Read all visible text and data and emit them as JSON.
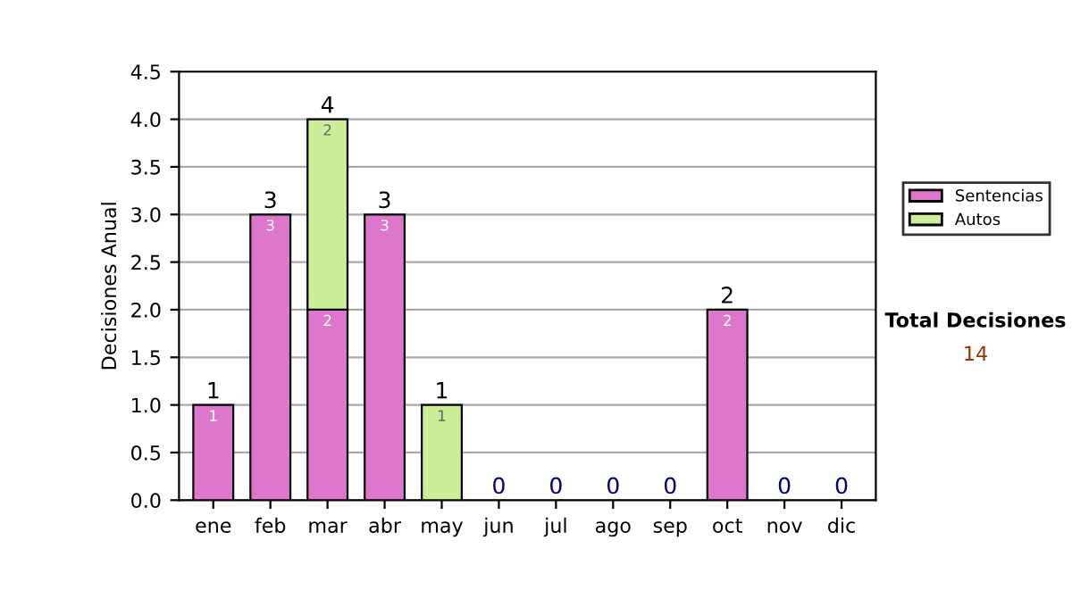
{
  "chart_data": {
    "type": "bar",
    "stacked": true,
    "ylabel": "Decisiones Anual",
    "categories": [
      "ene",
      "feb",
      "mar",
      "abr",
      "may",
      "jun",
      "jul",
      "ago",
      "sep",
      "oct",
      "nov",
      "dic"
    ],
    "series": [
      {
        "name": "Sentencias",
        "color": "#dd77cc",
        "values": [
          1,
          3,
          2,
          3,
          0,
          0,
          0,
          0,
          0,
          2,
          0,
          0
        ],
        "value_labels": [
          "1",
          "3",
          "2",
          "3",
          null,
          null,
          null,
          null,
          null,
          "2",
          null,
          null
        ]
      },
      {
        "name": "Autos",
        "color": "#ccee99",
        "values": [
          0,
          0,
          2,
          0,
          1,
          0,
          0,
          0,
          0,
          0,
          0,
          0
        ],
        "value_labels": [
          null,
          null,
          "2",
          null,
          "1",
          null,
          null,
          null,
          null,
          null,
          null,
          null
        ]
      }
    ],
    "totals": [
      "1",
      "3",
      "4",
      "3",
      "1",
      "0",
      "0",
      "0",
      "0",
      "2",
      "0",
      "0"
    ],
    "ylim": [
      0,
      4.5
    ],
    "yticks": [
      {
        "value": 0,
        "label": "0.0"
      },
      {
        "value": 0.5,
        "label": "0.5"
      },
      {
        "value": 1,
        "label": "1.0"
      },
      {
        "value": 1.5,
        "label": "1.5"
      },
      {
        "value": 2,
        "label": "2.0"
      },
      {
        "value": 2.5,
        "label": "2.5"
      },
      {
        "value": 3,
        "label": "3.0"
      },
      {
        "value": 3.5,
        "label": "3.5"
      },
      {
        "value": 4,
        "label": "4.0"
      },
      {
        "value": 4.5,
        "label": "4.5"
      }
    ],
    "grid": "y",
    "legend": "right",
    "annotations": [
      "Total Decisiones",
      "14"
    ]
  }
}
